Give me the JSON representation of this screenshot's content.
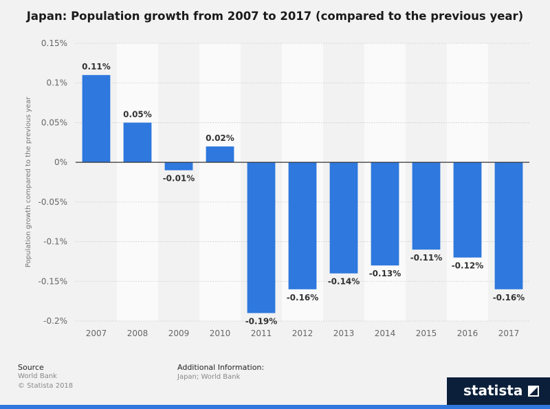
{
  "title": "Japan: Population growth from 2007 to 2017 (compared to the previous year)",
  "chart_data": {
    "type": "bar",
    "categories": [
      "2007",
      "2008",
      "2009",
      "2010",
      "2011",
      "2012",
      "2013",
      "2014",
      "2015",
      "2016",
      "2017"
    ],
    "values": [
      0.11,
      0.05,
      -0.01,
      0.02,
      -0.19,
      -0.16,
      -0.14,
      -0.13,
      -0.11,
      -0.12,
      -0.16
    ],
    "labels": [
      "0.11%",
      "0.05%",
      "-0.01%",
      "0.02%",
      "-0.19%",
      "-0.16%",
      "-0.14%",
      "-0.13%",
      "-0.11%",
      "-0.12%",
      "-0.16%"
    ],
    "ylabel": "Population growth compared to the previous year",
    "ylim": [
      -0.2,
      0.15
    ],
    "yticks": [
      0.15,
      0.1,
      0.05,
      0,
      -0.05,
      -0.1,
      -0.15,
      -0.2
    ],
    "ytick_labels": [
      "0.15%",
      "0.1%",
      "0.05%",
      "0%",
      "-0.05%",
      "-0.1%",
      "-0.15%",
      "-0.2%"
    ],
    "grid": true,
    "bar_color": "#2e78de"
  },
  "footer": {
    "source_heading": "Source",
    "source_lines": [
      "World Bank",
      "© Statista 2018"
    ],
    "additional_heading": "Additional Information:",
    "additional_text": "Japan; World Bank"
  },
  "brand": {
    "name": "statista",
    "color": "#0b1f3a",
    "accent": "#2f77dd"
  }
}
